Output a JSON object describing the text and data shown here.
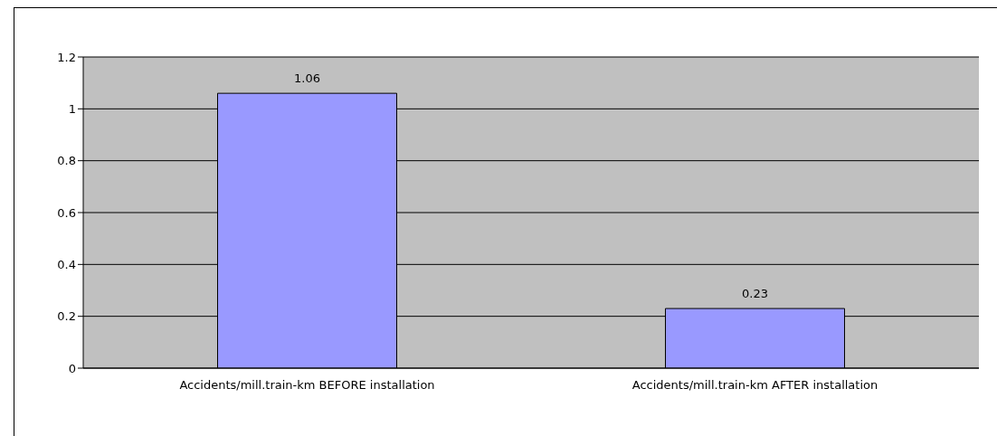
{
  "chart_data": {
    "type": "bar",
    "categories": [
      "Accidents/mill.train-km BEFORE installation",
      "Accidents/mill.train-km AFTER installation"
    ],
    "values": [
      1.06,
      0.23
    ],
    "color": "#9999ff",
    "ylim": [
      0,
      1.2
    ],
    "yticks": [
      0,
      0.2,
      0.4,
      0.6,
      0.8,
      1,
      1.2
    ],
    "grid": "y",
    "data_labels": true
  }
}
